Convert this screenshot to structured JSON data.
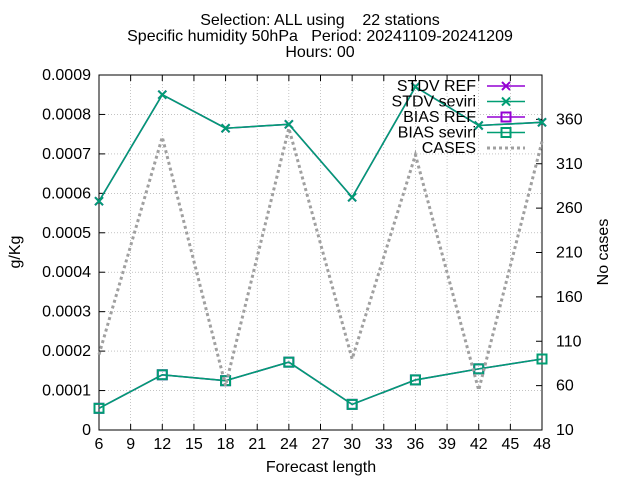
{
  "title": {
    "line1": "Selection: ALL using    22 stations",
    "line2": "Specific humidity 50hPa   Period: 20241109-20241209",
    "line3": "Hours: 00"
  },
  "chart_data": {
    "type": "line",
    "xlabel": "Forecast length",
    "ylabel": "g/Kg",
    "y2label": "No cases",
    "xlim": [
      6,
      48
    ],
    "ylim": [
      0,
      0.0009
    ],
    "y2lim": [
      10,
      410
    ],
    "x_ticks": [
      "6",
      "9",
      "12",
      "15",
      "18",
      "21",
      "24",
      "27",
      "30",
      "33",
      "36",
      "39",
      "42",
      "45",
      "48"
    ],
    "y_ticks": [
      "0",
      "0.0001",
      "0.0002",
      "0.0003",
      "0.0004",
      "0.0005",
      "0.0006",
      "0.0007",
      "0.0008",
      "0.0009"
    ],
    "y2_ticks": [
      "10",
      "60",
      "110",
      "160",
      "210",
      "260",
      "310",
      "360"
    ],
    "grid": true,
    "legend_position": "top-right",
    "x": [
      6,
      12,
      18,
      24,
      30,
      36,
      42,
      48
    ],
    "series": [
      {
        "name": "STDV REF",
        "color": "#9400d3",
        "marker": "x",
        "axis": "y1",
        "values": [
          0.00058,
          0.00085,
          0.000765,
          0.000775,
          0.00059,
          0.00087,
          0.000772,
          0.00078
        ]
      },
      {
        "name": "STDV seviri",
        "color": "#009e73",
        "marker": "x",
        "axis": "y1",
        "values": [
          0.00058,
          0.00085,
          0.000765,
          0.000775,
          0.00059,
          0.00087,
          0.000772,
          0.00078
        ]
      },
      {
        "name": "BIAS REF",
        "color": "#9400d3",
        "marker": "square",
        "axis": "y1",
        "values": [
          5.5e-05,
          0.00014,
          0.000125,
          0.000172,
          6.5e-05,
          0.000127,
          0.000155,
          0.00018
        ]
      },
      {
        "name": "BIAS seviri",
        "color": "#009e73",
        "marker": "square",
        "axis": "y1",
        "values": [
          5.5e-05,
          0.00014,
          0.000125,
          0.000172,
          6.5e-05,
          0.000127,
          0.000155,
          0.00018
        ]
      },
      {
        "name": "CASES",
        "color": "#a0a0a0",
        "marker": "none",
        "dashed": true,
        "axis": "y2",
        "values": [
          95,
          340,
          60,
          350,
          90,
          320,
          55,
          335
        ]
      }
    ]
  }
}
